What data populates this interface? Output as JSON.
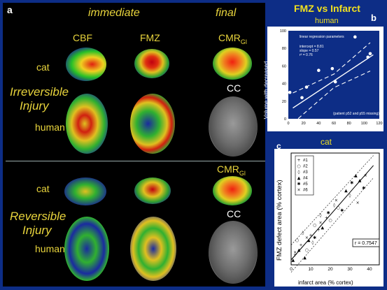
{
  "panel_a": {
    "letter": "a",
    "header_immediate": "immediate",
    "header_final": "final",
    "col_cbf": "CBF",
    "col_fmz": "FMZ",
    "cmr_top": "CMR",
    "cmr_top_sub": "Gl",
    "cmr_bottom": "CMR",
    "cmr_bottom_sub": "Gl",
    "cat_top": "cat",
    "cat_bottom": "cat",
    "human_top": "human",
    "human_bottom": "human",
    "irreversible_line1": "Irreversible",
    "irreversible_line2": "Injury",
    "reversible_line1": "Reversible",
    "reversible_line2": "Injury",
    "cc_top": "CC",
    "cc_bottom": "CC"
  },
  "panel_b": {
    "letter": "b",
    "title": "FMZ vs Infarct",
    "subtitle": "human",
    "xlabel": "Infarct size in ccm",
    "ylabel_line1": "Volume with decreased",
    "ylabel_line2": "FMZ-binding in ccm",
    "x_ticks": [
      "0",
      "20",
      "40",
      "60",
      "80",
      "100",
      "120"
    ],
    "y_ticks": [
      "0",
      "20",
      "40",
      "60",
      "80",
      "100"
    ],
    "legend_title": "linear regression parameters",
    "legend_intercept": "intercept = 8.81",
    "legend_slope": "slope = 0.57",
    "legend_r": "r² = 0.76",
    "footnote": "(patient p52 and p55 missing)",
    "species_label": "cat"
  },
  "panel_c": {
    "letter": "c",
    "xlabel": "infarct area (% cortex)",
    "ylabel": "FMZ defect area (% cortex)",
    "x_ticks": [
      "0",
      "10",
      "20",
      "30",
      "40"
    ],
    "r_label": "r = 0.7547",
    "legend": [
      "#1",
      "#2",
      "#3",
      "#4",
      "#5",
      "#6"
    ]
  },
  "chart_data": [
    {
      "type": "scatter",
      "title": "FMZ vs Infarct",
      "xlabel": "Infarct size in ccm",
      "ylabel": "Volume with decreased FMZ-binding in ccm",
      "xlim": [
        0,
        120
      ],
      "ylim": [
        0,
        100
      ],
      "x": [
        2,
        18,
        24,
        40,
        58,
        62,
        88,
        105,
        108
      ],
      "y": [
        30,
        24,
        36,
        55,
        57,
        42,
        93,
        70,
        74
      ],
      "regression": {
        "intercept": 8.81,
        "slope": 0.57,
        "r2": 0.76
      }
    },
    {
      "type": "scatter",
      "xlabel": "infarct area (% cortex)",
      "ylabel": "FMZ defect area (% cortex)",
      "xlim": [
        0,
        45
      ],
      "ylim": [
        0,
        45
      ],
      "r": 0.7547,
      "series": [
        {
          "name": "#1",
          "x": [
            2,
            5,
            10,
            14,
            18
          ],
          "y": [
            4,
            8,
            12,
            14,
            19
          ]
        },
        {
          "name": "#2",
          "x": [
            3,
            8,
            12,
            20,
            24
          ],
          "y": [
            10,
            6,
            16,
            18,
            23
          ]
        },
        {
          "name": "#3",
          "x": [
            6,
            11,
            15,
            22,
            30
          ],
          "y": [
            13,
            9,
            20,
            24,
            28
          ]
        },
        {
          "name": "#4",
          "x": [
            1,
            4,
            7,
            9,
            16,
            28,
            33,
            35
          ],
          "y": [
            2,
            6,
            3,
            10,
            15,
            30,
            36,
            34
          ]
        },
        {
          "name": "#5",
          "x": [
            12,
            19,
            26,
            31,
            37
          ],
          "y": [
            11,
            21,
            22,
            33,
            31
          ]
        },
        {
          "name": "#6",
          "x": [
            2,
            8,
            15,
            23,
            34,
            38
          ],
          "y": [
            5,
            11,
            17,
            26,
            25,
            36
          ]
        }
      ]
    }
  ]
}
